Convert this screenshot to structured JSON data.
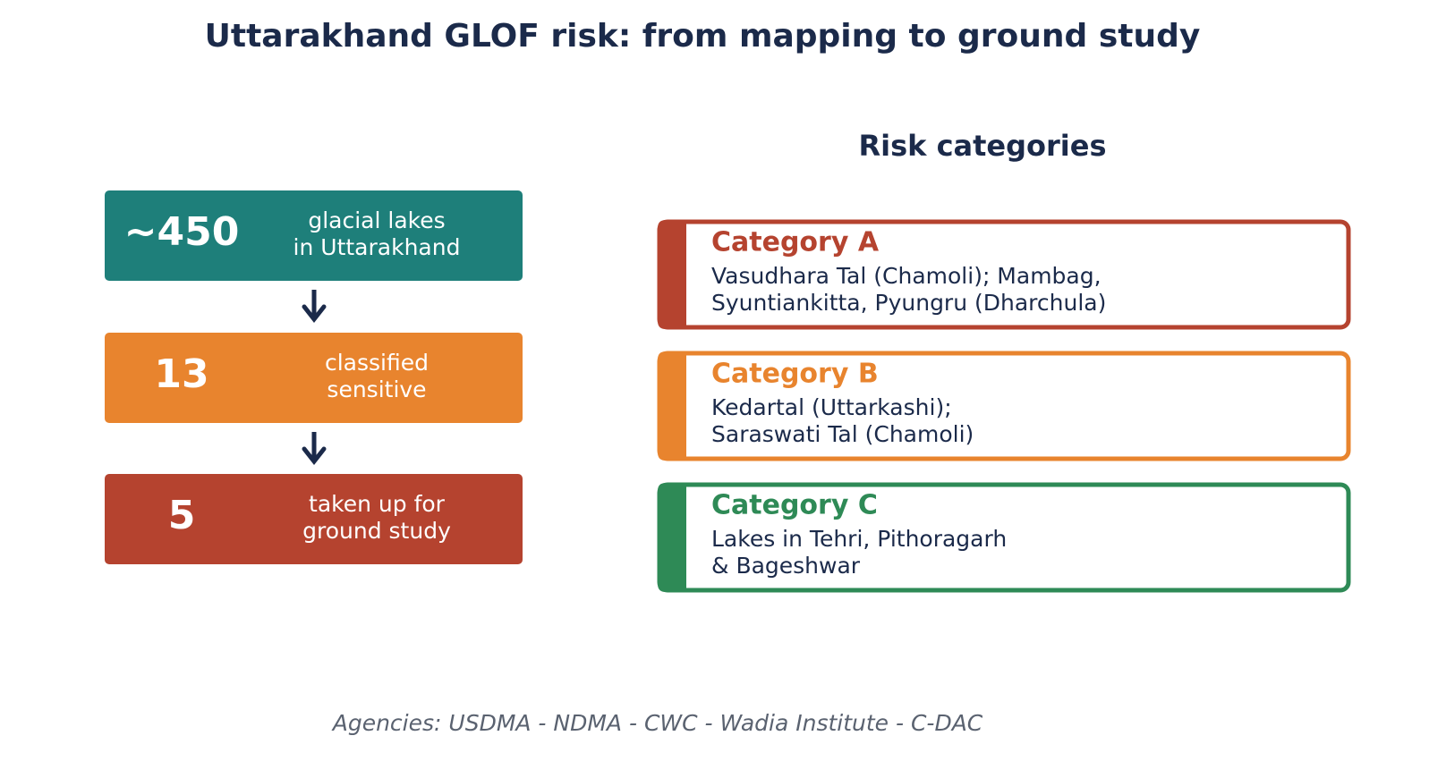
{
  "title": "Uttarakhand GLOF risk: from mapping to ground study",
  "funnel": [
    {
      "number": "~450",
      "lines": [
        "glacial lakes",
        "in Uttarakhand"
      ],
      "color": "#1e7f7a"
    },
    {
      "number": "13",
      "lines": [
        "classified",
        "sensitive"
      ],
      "color": "#e8842e"
    },
    {
      "number": "5",
      "lines": [
        "taken up for",
        "ground study"
      ],
      "color": "#b5432f"
    }
  ],
  "categories_heading": "Risk categories",
  "categories": [
    {
      "name": "Category A",
      "lines": [
        "Vasudhara Tal (Chamoli); Mambag,",
        "Syuntiankitta, Pyungru (Dharchula)"
      ],
      "color": "#b5432f"
    },
    {
      "name": "Category B",
      "lines": [
        "Kedartal (Uttarkashi);",
        "Saraswati Tal (Chamoli)"
      ],
      "color": "#e8842e"
    },
    {
      "name": "Category C",
      "lines": [
        "Lakes in Tehri, Pithoragarh",
        "& Bageshwar"
      ],
      "color": "#2e8a56"
    }
  ],
  "footer": "Agencies: USDMA - NDMA - CWC - Wadia Institute - C-DAC"
}
